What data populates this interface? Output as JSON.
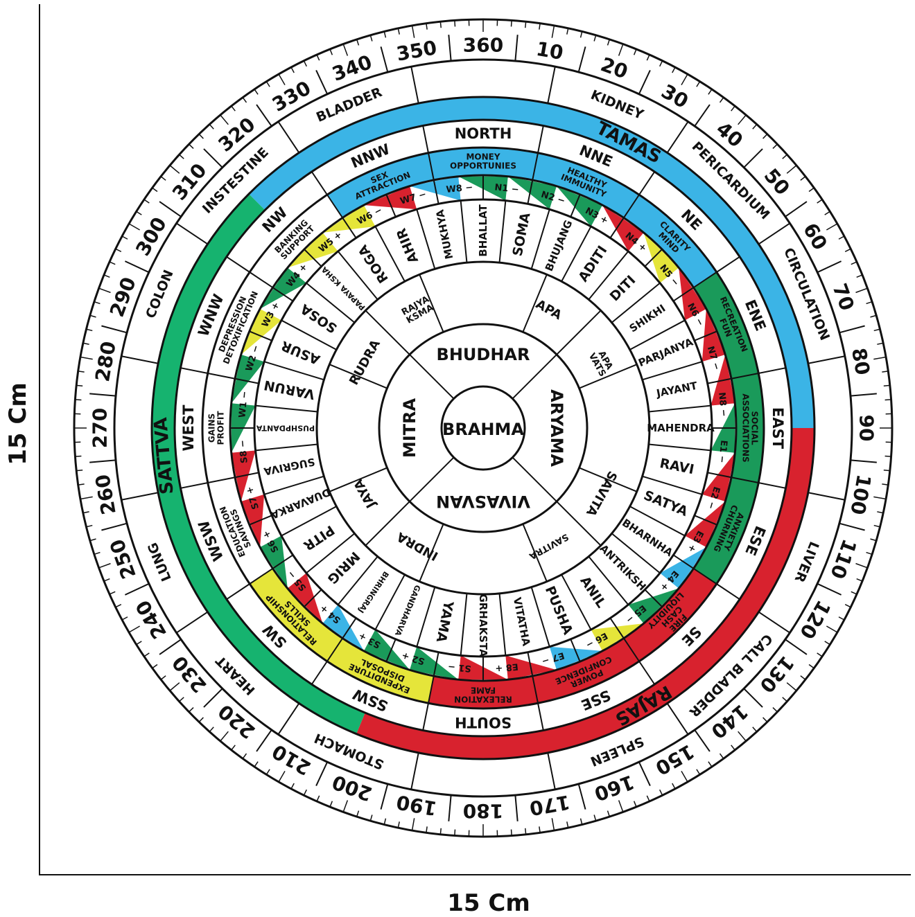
{
  "dimensions": {
    "width_label": "15 Cm",
    "height_label": "15 Cm"
  },
  "center_label": "BRAHMA",
  "colors": {
    "tamas": "#3bb4e6",
    "sattva": "#16b36f",
    "rajas": "#d8222e",
    "zone_green": "#1a9a5a",
    "zone_yellow": "#e5e53a",
    "zone_red": "#d8222e",
    "zone_blue": "#3bb4e6",
    "brahma_text": "#d8222e",
    "ink": "#111111"
  },
  "degree_labels": [
    "360",
    "10",
    "20",
    "30",
    "40",
    "50",
    "60",
    "70",
    "80",
    "90",
    "100",
    "110",
    "120",
    "130",
    "140",
    "150",
    "160",
    "170",
    "180",
    "190",
    "200",
    "210",
    "220",
    "230",
    "240",
    "250",
    "260",
    "270",
    "280",
    "290",
    "300",
    "310",
    "320",
    "330",
    "340",
    "350"
  ],
  "organs": [
    {
      "label": "KIDNEY",
      "angle": 22.5
    },
    {
      "label": "PERICARDIUM",
      "angle": 45
    },
    {
      "label": "CIRCULATION",
      "angle": 67.5
    },
    {
      "label": "LIVER",
      "angle": 112.5
    },
    {
      "label": "CALL BLADDER",
      "angle": 135
    },
    {
      "label": "SPLEEN",
      "angle": 157.5
    },
    {
      "label": "STOMACH",
      "angle": 202.5
    },
    {
      "label": "HEART",
      "angle": 225
    },
    {
      "label": "LUNG",
      "angle": 247.5
    },
    {
      "label": "COLON",
      "angle": 292.5
    },
    {
      "label": "INSTESTINE",
      "angle": 315
    },
    {
      "label": "BLADDER",
      "angle": 337.5
    }
  ],
  "gunas": [
    {
      "label": "TAMAS",
      "angle": 27,
      "color_key": "tamas",
      "start": -45,
      "end": 90
    },
    {
      "label": "RAJAS",
      "angle": 150,
      "color_key": "rajas",
      "start": 90,
      "end": 202.5
    },
    {
      "label": "SATTVA",
      "angle": 265,
      "color_key": "sattva",
      "start": 202.5,
      "end": 315
    }
  ],
  "directions": [
    "NORTH",
    "NNE",
    "NE",
    "ENE",
    "EAST",
    "ESE",
    "SE",
    "SSE",
    "SOUTH",
    "SSW",
    "SW",
    "WSW",
    "WEST",
    "WNW",
    "NW",
    "NNW"
  ],
  "zone_meanings": [
    {
      "label": "MONEY OPPORTUNIES",
      "color_key": "zone_blue",
      "start": -11.25,
      "end": 11.25
    },
    {
      "label": "HEALTHY IMMUNITY",
      "color_key": "zone_blue",
      "start": 11.25,
      "end": 33.75
    },
    {
      "label": "CLARITY MIND",
      "color_key": "zone_blue",
      "start": 33.75,
      "end": 56.25
    },
    {
      "label": "RECREATION FUN",
      "color_key": "zone_green",
      "start": 56.25,
      "end": 78.75
    },
    {
      "label": "SOCIAL ASSOCIATIONS",
      "color_key": "zone_green",
      "start": 78.75,
      "end": 101.25
    },
    {
      "label": "ANXIETY CHURNING",
      "color_key": "zone_green",
      "start": 101.25,
      "end": 123.75
    },
    {
      "label": "FIRE CASH LIQUIDITY",
      "color_key": "zone_red",
      "start": 123.75,
      "end": 146.25
    },
    {
      "label": "POWER CONFIDENCE",
      "color_key": "zone_red",
      "start": 146.25,
      "end": 168.75
    },
    {
      "label": "RELEXATION FAME",
      "color_key": "zone_red",
      "start": 168.75,
      "end": 191.25
    },
    {
      "label": "EXPENDITURE DISPOSAL",
      "color_key": "zone_yellow",
      "start": 191.25,
      "end": 213.75
    },
    {
      "label": "RELATIONSHIP SKILLS",
      "color_key": "zone_yellow",
      "start": 213.75,
      "end": 236.25
    },
    {
      "label": "EDUCATION SAVINGS",
      "color_key": "none",
      "start": 236.25,
      "end": 258.75
    },
    {
      "label": "GAINS PROFIT",
      "color_key": "none",
      "start": 258.75,
      "end": 281.25
    },
    {
      "label": "DEPRESSION DETOXIFICATION",
      "color_key": "none",
      "start": 281.25,
      "end": 303.75
    },
    {
      "label": "BANKING SUPPORT",
      "color_key": "none",
      "start": 303.75,
      "end": 326.25
    },
    {
      "label": "SEX ATTRACTION",
      "color_key": "zone_blue",
      "start": 326.25,
      "end": 348.75
    }
  ],
  "padas": [
    {
      "code": "N1",
      "sign": "−",
      "color_key": "zone_green"
    },
    {
      "code": "N2",
      "sign": "−",
      "color_key": "zone_green"
    },
    {
      "code": "N3",
      "sign": "+",
      "color_key": "zone_green"
    },
    {
      "code": "N4",
      "sign": "+",
      "color_key": "zone_red"
    },
    {
      "code": "N5",
      "sign": "−",
      "color_key": "zone_yellow"
    },
    {
      "code": "N6",
      "sign": "−",
      "color_key": "zone_red"
    },
    {
      "code": "N7",
      "sign": "−",
      "color_key": "zone_red"
    },
    {
      "code": "N8",
      "sign": "−",
      "color_key": "zone_red"
    },
    {
      "code": "E1",
      "sign": "−",
      "color_key": "zone_green"
    },
    {
      "code": "E2",
      "sign": "−",
      "color_key": "zone_red"
    },
    {
      "code": "E3",
      "sign": "+",
      "color_key": "zone_red"
    },
    {
      "code": "E4",
      "sign": "+",
      "color_key": "zone_blue"
    },
    {
      "code": "E5",
      "sign": "−",
      "color_key": "zone_green"
    },
    {
      "code": "E6",
      "sign": "−",
      "color_key": "zone_yellow"
    },
    {
      "code": "E7",
      "sign": "−",
      "color_key": "zone_blue"
    },
    {
      "code": "E8",
      "sign": "+",
      "color_key": "zone_red"
    },
    {
      "code": "S1",
      "sign": "−",
      "color_key": "zone_red"
    },
    {
      "code": "S2",
      "sign": "+",
      "color_key": "zone_green"
    },
    {
      "code": "S3",
      "sign": "+",
      "color_key": "zone_green"
    },
    {
      "code": "S4",
      "sign": "+",
      "color_key": "zone_blue"
    },
    {
      "code": "S5",
      "sign": "−",
      "color_key": "zone_red"
    },
    {
      "code": "S6",
      "sign": "+",
      "color_key": "zone_green"
    },
    {
      "code": "S7",
      "sign": "+",
      "color_key": "zone_red"
    },
    {
      "code": "S8",
      "sign": "−",
      "color_key": "zone_red"
    },
    {
      "code": "W1",
      "sign": "−",
      "color_key": "zone_green"
    },
    {
      "code": "W2",
      "sign": "−",
      "color_key": "zone_green"
    },
    {
      "code": "W3",
      "sign": "+",
      "color_key": "zone_yellow"
    },
    {
      "code": "W4",
      "sign": "+",
      "color_key": "zone_green"
    },
    {
      "code": "W5",
      "sign": "+",
      "color_key": "zone_yellow"
    },
    {
      "code": "W6",
      "sign": "−",
      "color_key": "zone_yellow"
    },
    {
      "code": "W7",
      "sign": "−",
      "color_key": "zone_red"
    },
    {
      "code": "W8",
      "sign": "−",
      "color_key": "zone_blue"
    }
  ],
  "outer_devtas": [
    "BHALLAT",
    "SOMA",
    "BHUJANG",
    "ADITI",
    "DITI",
    "SHIKHI",
    "PARJANYA",
    "JAYANT",
    "MAHENDRA",
    "RAVI",
    "SATYA",
    "BHARNHA",
    "ANTRIKSH",
    "ANIL",
    "PUSHA",
    "VITATHA",
    "GRHAKSTA",
    "YAMA",
    "GANDHARVA",
    "BHRINGRAJ",
    "MRIG",
    "PITR",
    "DUAVARKA",
    "SUGRIVA",
    "PUSHPDANTA",
    "VARUN",
    "ASUR",
    "SOSA",
    "PAPAYA KSHA",
    "ROGA",
    "AHIR",
    "MUKHYA"
  ],
  "mid_devtas": [
    {
      "label": "APA",
      "angle": 29
    },
    {
      "label": "APA VATS",
      "angle": 61
    },
    {
      "label": "SAVITA",
      "angle": 119
    },
    {
      "label": "SAVITRA",
      "angle": 151
    },
    {
      "label": "INDRA",
      "angle": 209
    },
    {
      "label": "JAYA",
      "angle": 241
    },
    {
      "label": "RUDRA",
      "angle": 299
    },
    {
      "label": "RAJYA KSMA",
      "angle": 331
    }
  ],
  "inner_devtas": [
    {
      "label": "BHUDHAR",
      "angle": 0
    },
    {
      "label": "ARYAMA",
      "angle": 90
    },
    {
      "label": "VIVASVAN",
      "angle": 180
    },
    {
      "label": "MITRA",
      "angle": 270
    }
  ]
}
